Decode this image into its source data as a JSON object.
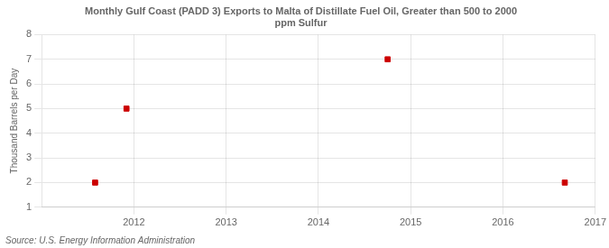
{
  "chart_data": {
    "type": "scatter",
    "title": [
      "Monthly Gulf Coast (PADD 3) Exports to Malta of Distillate Fuel Oil, Greater than 500 to 2000",
      "ppm Sulfur"
    ],
    "ylabel": "Thousand Barrels per Day",
    "annotations": [
      "Source: U.S. Energy Information Administration"
    ],
    "x": [
      2011.58,
      2011.92,
      2014.75,
      2016.67
    ],
    "values": [
      2.0,
      5.0,
      7.0,
      2.0
    ],
    "color": "#cc0000",
    "marker": "square",
    "xlim": [
      2011.0,
      2017.0
    ],
    "xticks": [
      2012,
      2013,
      2014,
      2015,
      2016,
      2017
    ],
    "ylim": [
      1,
      8
    ],
    "yticks": [
      1,
      2,
      3,
      4,
      5,
      6,
      7,
      8
    ],
    "grid": true
  }
}
